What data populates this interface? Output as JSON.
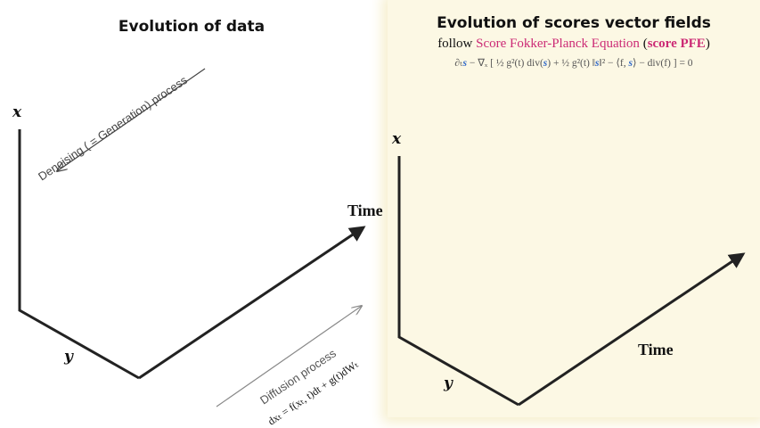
{
  "left": {
    "title": "Evolution of data",
    "axis_time": "Time",
    "axis_x": "x",
    "axis_y": "y",
    "denoising_label": "Denoising ( = Generation) process",
    "diffusion_label": "Diffusion process",
    "diffusion_formula": "dxₜ = f(xₜ, t)dt + g(t)dWₜ"
  },
  "right": {
    "title": "Evolution of scores vector fields",
    "subtitle_prefix": "follow ",
    "subtitle_link": "Score Fokker-Planck Equation",
    "subtitle_open": " (",
    "subtitle_abbr": "score PFE",
    "subtitle_close": ")",
    "equation": {
      "p1": "∂ₜ",
      "s1": "s",
      "p2": " − ∇ₓ [ ½ g²(t) div(",
      "s2": "s",
      "p3": ") + ½ g²(t) ‖",
      "s3": "s",
      "p4": "‖² − ⟨f, ",
      "s4": "s",
      "p5": "⟩ − div(f) ] = 0"
    },
    "axis_time": "Time",
    "axis_x": "x",
    "axis_y": "y"
  },
  "colors": {
    "panel_bg": "#fcf8e4",
    "pink": "#cc2a75",
    "blue": "#3068c8",
    "axis": "#222222"
  }
}
